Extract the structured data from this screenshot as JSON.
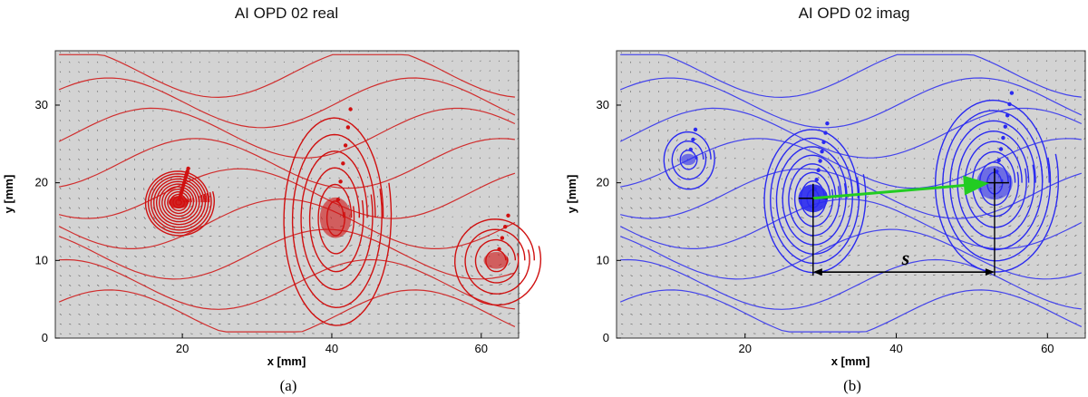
{
  "chart_data": [
    {
      "type": "streamline",
      "title": "AI   OPD 02 real",
      "xlabel": "x [mm]",
      "ylabel": "y [mm]",
      "xlim": [
        3,
        65
      ],
      "ylim": [
        0,
        37
      ],
      "xticks": [
        20,
        40,
        60
      ],
      "yticks": [
        0,
        10,
        20,
        30
      ],
      "caption": "(a)",
      "line_color": "#d01010",
      "background": "#d3d3d3",
      "vortex_centers": [
        {
          "x": 19.5,
          "y": 17.5,
          "rx": 4.8,
          "ry": 4.5,
          "turns": 12
        },
        {
          "x": 40.5,
          "y": 15.5,
          "rx": 7.5,
          "ry": 14.5,
          "turns": 6
        },
        {
          "x": 62,
          "y": 10,
          "rx": 6,
          "ry": 6,
          "turns": 4
        }
      ]
    },
    {
      "type": "streamline",
      "title": "AI   OPD 02 imag",
      "xlabel": "x [mm]",
      "ylabel": "y [mm]",
      "xlim": [
        3,
        65
      ],
      "ylim": [
        0,
        37
      ],
      "xticks": [
        20,
        40,
        60
      ],
      "yticks": [
        0,
        10,
        20,
        30
      ],
      "caption": "(b)",
      "line_color": "#2a2af0",
      "background": "#d3d3d3",
      "vortex_centers": [
        {
          "x": 29,
          "y": 18,
          "rx": 7,
          "ry": 10,
          "turns": 8
        },
        {
          "x": 53,
          "y": 20,
          "rx": 8.5,
          "ry": 12,
          "turns": 8
        },
        {
          "x": 12.5,
          "y": 23,
          "rx": 3.5,
          "ry": 4,
          "turns": 3
        }
      ],
      "annotation": {
        "label": "s",
        "from": {
          "x": 29,
          "y": 18
        },
        "to": {
          "x": 53,
          "y": 20
        },
        "dimension_y": 8.5,
        "arrow_color": "#22cc22"
      }
    }
  ]
}
